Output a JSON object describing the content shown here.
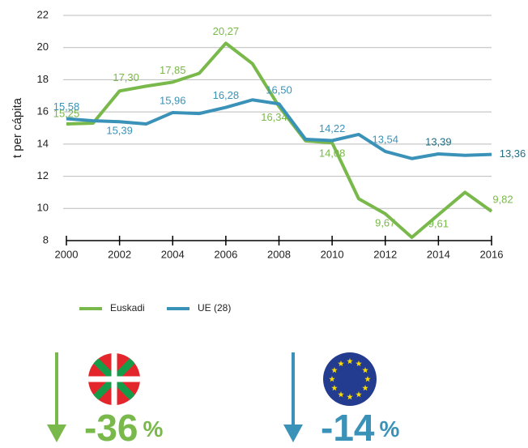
{
  "chart_data": {
    "type": "line",
    "y_label": "t per cápita",
    "x": [
      2000,
      2001,
      2002,
      2003,
      2004,
      2005,
      2006,
      2007,
      2008,
      2009,
      2010,
      2011,
      2012,
      2013,
      2014,
      2015,
      2016
    ],
    "xlim": [
      2000,
      2016
    ],
    "xticks": [
      2000,
      2002,
      2004,
      2006,
      2008,
      2010,
      2012,
      2014,
      2016
    ],
    "ylim": [
      8,
      22
    ],
    "yticks": [
      8,
      10,
      12,
      14,
      16,
      18,
      20,
      22
    ],
    "grid": true,
    "series": [
      {
        "name": "Euskadi",
        "color": "#79b84a",
        "values": [
          15.25,
          15.3,
          17.3,
          17.6,
          17.85,
          18.4,
          20.27,
          19.0,
          16.34,
          14.2,
          14.08,
          10.6,
          9.67,
          8.2,
          9.61,
          11.0,
          9.82
        ],
        "value_labels": [
          "15,25",
          null,
          "17,30",
          null,
          "17,85",
          null,
          "20,27",
          null,
          "16,34",
          null,
          "14,08",
          null,
          "9,67",
          null,
          "9,61",
          null,
          "9,82"
        ]
      },
      {
        "name": "UE (28)",
        "color": "#3b92b8",
        "values": [
          15.58,
          15.45,
          15.39,
          15.25,
          15.96,
          15.9,
          16.28,
          16.75,
          16.5,
          14.3,
          14.22,
          14.6,
          13.54,
          13.1,
          13.39,
          13.3,
          13.36
        ],
        "value_labels": [
          "15,58",
          null,
          "15,39",
          null,
          "15,96",
          null,
          "16,28",
          null,
          "16,50",
          null,
          "14,22",
          null,
          "13,54",
          null,
          "13,39",
          null,
          "13,36"
        ]
      }
    ]
  },
  "indicators": [
    {
      "label": "-36",
      "unit": "%"
    },
    {
      "label": "-14",
      "unit": "%"
    }
  ]
}
